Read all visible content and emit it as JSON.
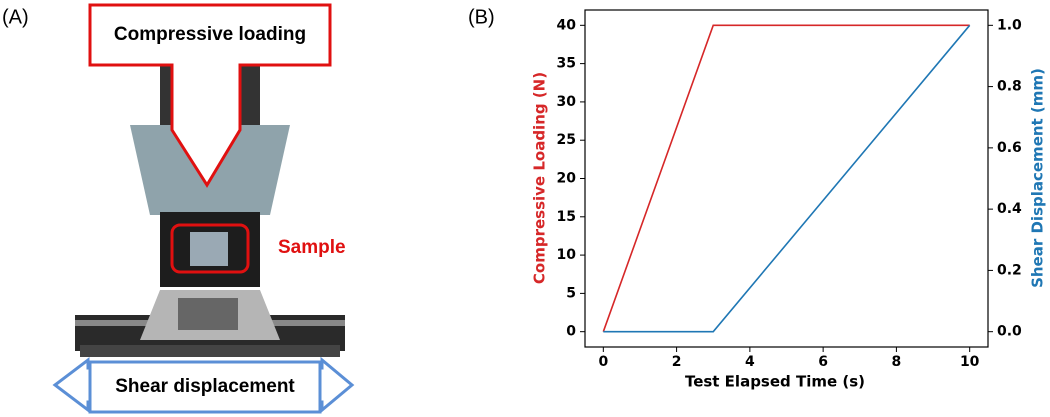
{
  "panel_a": {
    "label": "(A)",
    "loading_label": "Compressive loading",
    "sample_label": "Sample",
    "shear_label": "Shear displacement"
  },
  "chart_data": {
    "type": "line",
    "panel_label": "(B)",
    "x_label": "Test Elapsed Time (s)",
    "y_label": "Compressive Loading (N)",
    "y2_label": "Shear Displacement (mm)",
    "x": [
      0,
      3,
      10
    ],
    "series": [
      {
        "name": "Compressive Loading (N)",
        "color": "#d62728",
        "values": [
          0,
          40,
          40
        ]
      },
      {
        "name": "Shear Displacement (mm)",
        "color": "#1f77b4",
        "values": [
          0,
          0,
          1
        ],
        "axis": "y2"
      }
    ],
    "xlim": [
      -0.5,
      10.5
    ],
    "xticks": [
      0,
      2,
      4,
      6,
      8,
      10
    ],
    "ylim": [
      -2,
      42
    ],
    "yticks": [
      0,
      5,
      10,
      15,
      20,
      25,
      30,
      35,
      40
    ],
    "y2lim": [
      -0.05,
      1.05
    ],
    "y2ticks": [
      {
        "value": 0,
        "label": "0.0"
      },
      0.2,
      0.4,
      0.6,
      0.8,
      {
        "value": 1,
        "label": "1.0"
      }
    ]
  }
}
